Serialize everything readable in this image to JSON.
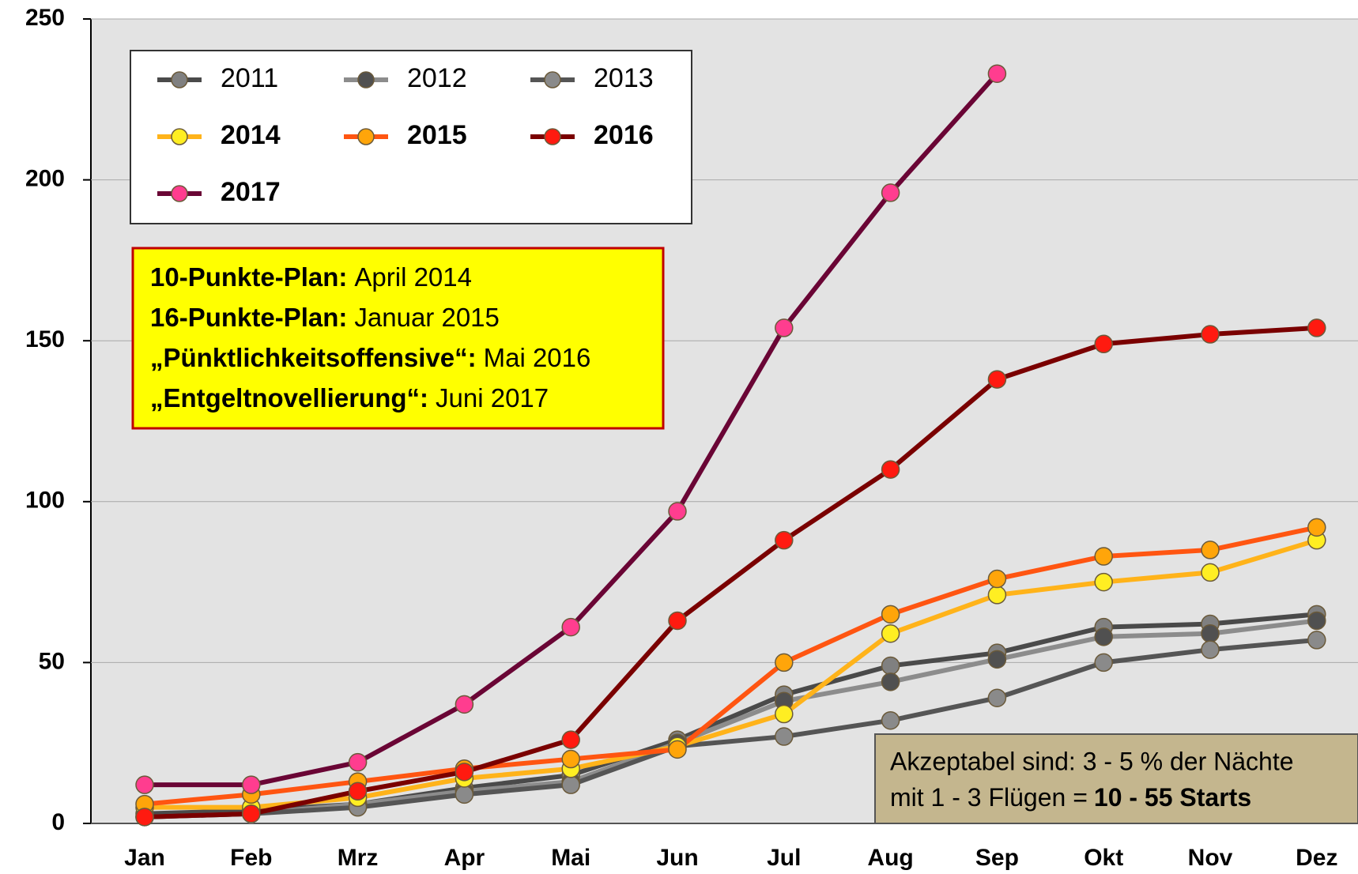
{
  "chart_data": {
    "type": "line",
    "categories": [
      "Jan",
      "Feb",
      "Mrz",
      "Apr",
      "Mai",
      "Jun",
      "Jul",
      "Aug",
      "Sep",
      "Okt",
      "Nov",
      "Dez"
    ],
    "ylim": [
      0,
      250
    ],
    "yticks": [
      0,
      50,
      100,
      150,
      200,
      250
    ],
    "grid": true,
    "series": [
      {
        "name": "2011",
        "line_color": "#4a4a4a",
        "color": "#808080",
        "bold": false,
        "values": [
          3,
          4,
          6,
          11,
          15,
          26,
          40,
          49,
          53,
          61,
          62,
          65
        ]
      },
      {
        "name": "2012",
        "line_color": "#8c8c8c",
        "color": "#505050",
        "bold": false,
        "values": [
          2,
          3,
          6,
          10,
          13,
          25,
          38,
          44,
          51,
          58,
          59,
          63
        ]
      },
      {
        "name": "2013",
        "line_color": "#555555",
        "color": "#8a8a8a",
        "bold": false,
        "values": [
          2,
          3,
          5,
          9,
          12,
          24,
          27,
          32,
          39,
          50,
          54,
          57
        ]
      },
      {
        "name": "2014",
        "line_color": "#ffb31a",
        "color": "#ffee22",
        "bold": true,
        "values": [
          5,
          5,
          8,
          14,
          17,
          24,
          34,
          59,
          71,
          75,
          78,
          88
        ]
      },
      {
        "name": "2015",
        "line_color": "#ff5511",
        "color": "#ffa50a",
        "bold": true,
        "values": [
          6,
          9,
          13,
          17,
          20,
          23,
          50,
          65,
          76,
          83,
          85,
          92
        ]
      },
      {
        "name": "2016",
        "line_color": "#7a0000",
        "color": "#ff1a10",
        "bold": true,
        "values": [
          2,
          3,
          10,
          16,
          26,
          63,
          88,
          110,
          138,
          149,
          152,
          154
        ]
      },
      {
        "name": "2017",
        "line_color": "#6a0535",
        "color": "#ff3d8f",
        "bold": true,
        "values": [
          12,
          12,
          19,
          37,
          61,
          97,
          154,
          196,
          233,
          null,
          null,
          null
        ]
      }
    ],
    "annotations": [
      {
        "bold": "10-Punkte-Plan:",
        "text": "April 2014"
      },
      {
        "bold": "16-Punkte-Plan:",
        "text": "Januar 2015"
      },
      {
        "bold": "„Pünktlichkeitsoffensive“:",
        "text": "Mai 2016"
      },
      {
        "bold": "„Entgeltnovellierung“:",
        "text": "Juni 2017"
      }
    ],
    "note": {
      "line1": "Akzeptabel sind:  3 - 5 % der Nächte",
      "line2": "mit 1 - 3 Flügen =",
      "line2_bold": "10 - 55 Starts"
    }
  }
}
